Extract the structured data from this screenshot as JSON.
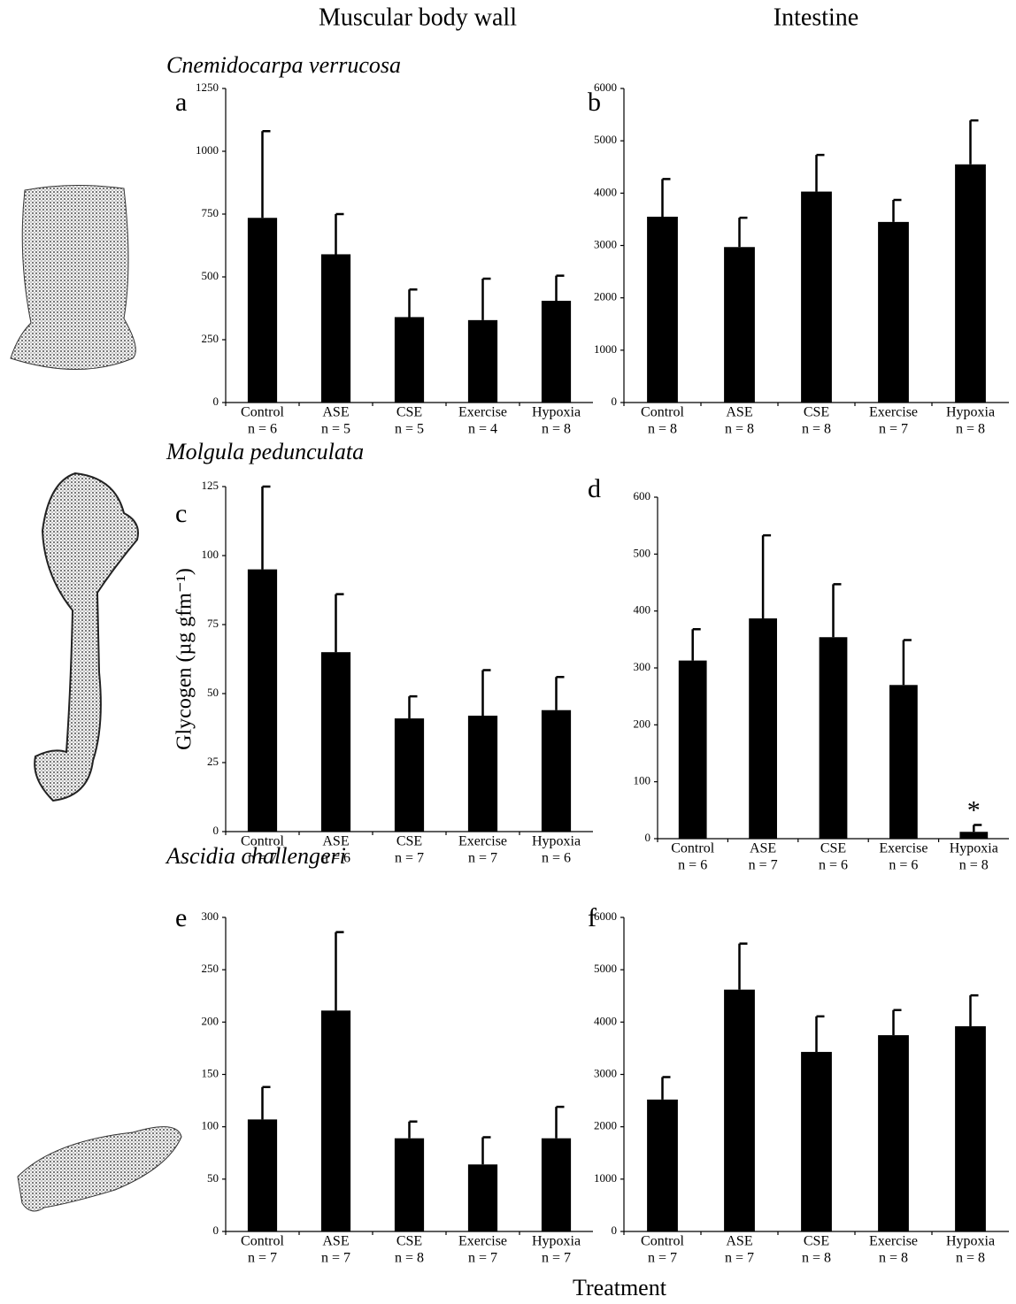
{
  "column_titles": [
    "Muscular body wall",
    "Intestine"
  ],
  "species": [
    "Cnemidocarpa verrucosa",
    "Molgula pedunculata",
    "Ascidia challengeri"
  ],
  "y_axis_label": "Glycogen (µg gfm⁻¹)",
  "x_axis_label": "Treatment",
  "chart_data": [
    {
      "type": "bar",
      "panel": "a",
      "categories": [
        "Control",
        "ASE",
        "CSE",
        "Exercise",
        "Hypoxia"
      ],
      "sample_sizes": [
        "n = 6",
        "n = 5",
        "n = 5",
        "n = 4",
        "n = 8"
      ],
      "values": [
        735,
        590,
        340,
        328,
        405
      ],
      "errors": [
        345,
        160,
        110,
        165,
        100
      ],
      "color": "#000000",
      "ylim": [
        0,
        1250
      ],
      "yticks": [
        0,
        250,
        500,
        750,
        1000,
        1250
      ]
    },
    {
      "type": "bar",
      "panel": "b",
      "categories": [
        "Control",
        "ASE",
        "CSE",
        "Exercise",
        "Hypoxia"
      ],
      "sample_sizes": [
        "n = 8",
        "n = 8",
        "n = 8",
        "n = 7",
        "n = 8"
      ],
      "values": [
        3550,
        2970,
        4030,
        3450,
        4550
      ],
      "errors": [
        720,
        560,
        700,
        420,
        840
      ],
      "color": "#000000",
      "ylim": [
        0,
        6000
      ],
      "yticks": [
        0,
        1000,
        2000,
        3000,
        4000,
        5000,
        6000
      ]
    },
    {
      "type": "bar",
      "panel": "c",
      "categories": [
        "Control",
        "ASE",
        "CSE",
        "Exercise",
        "Hypoxia"
      ],
      "sample_sizes": [
        "n = 7",
        "n = 6",
        "n = 7",
        "n = 7",
        "n = 6"
      ],
      "values": [
        95,
        65,
        41,
        42,
        44
      ],
      "errors": [
        30,
        21,
        8,
        16.5,
        12
      ],
      "color": "#000000",
      "ylim": [
        0,
        125
      ],
      "yticks": [
        0,
        25,
        50,
        75,
        100,
        125
      ]
    },
    {
      "type": "bar",
      "panel": "d",
      "categories": [
        "Control",
        "ASE",
        "CSE",
        "Exercise",
        "Hypoxia"
      ],
      "sample_sizes": [
        "n = 6",
        "n = 7",
        "n = 6",
        "n = 6",
        "n = 8"
      ],
      "values": [
        313,
        387,
        354,
        270,
        12
      ],
      "errors": [
        55,
        146,
        93,
        79,
        12
      ],
      "color": "#000000",
      "ylim": [
        0,
        600
      ],
      "yticks": [
        0,
        100,
        200,
        300,
        400,
        500,
        600
      ],
      "annotation": {
        "text": "*",
        "category": "Hypoxia"
      }
    },
    {
      "type": "bar",
      "panel": "e",
      "categories": [
        "Control",
        "ASE",
        "CSE",
        "Exercise",
        "Hypoxia"
      ],
      "sample_sizes": [
        "n = 7",
        "n = 7",
        "n = 8",
        "n = 7",
        "n = 7"
      ],
      "values": [
        107,
        211,
        89,
        64,
        89
      ],
      "errors": [
        31,
        75,
        16,
        26,
        30
      ],
      "color": "#000000",
      "ylim": [
        0,
        300
      ],
      "yticks": [
        0,
        50,
        100,
        150,
        200,
        250,
        300
      ]
    },
    {
      "type": "bar",
      "panel": "f",
      "categories": [
        "Control",
        "ASE",
        "CSE",
        "Exercise",
        "Hypoxia"
      ],
      "sample_sizes": [
        "n = 7",
        "n = 7",
        "n = 8",
        "n = 8",
        "n = 8"
      ],
      "values": [
        2520,
        4620,
        3430,
        3750,
        3920
      ],
      "errors": [
        430,
        880,
        680,
        480,
        590
      ],
      "color": "#000000",
      "ylim": [
        0,
        6000
      ],
      "yticks": [
        0,
        1000,
        2000,
        3000,
        4000,
        5000,
        6000
      ]
    }
  ]
}
